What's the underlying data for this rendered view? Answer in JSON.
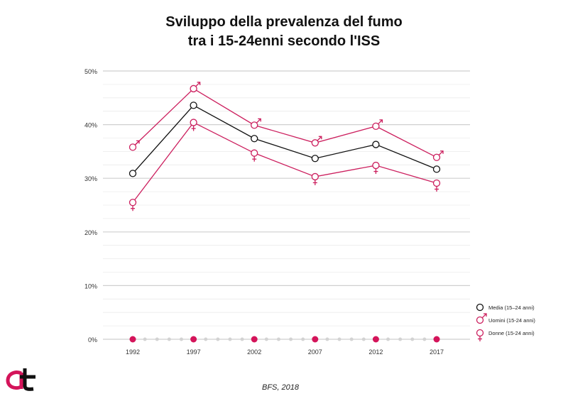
{
  "title_line1": "Sviluppo della prevalenza del fumo",
  "title_line2": "tra i 15-24enni secondo l'ISS",
  "source": "BFS, 2018",
  "colors": {
    "media": "#111111",
    "male": "#cc1f5e",
    "female": "#cc1f5e",
    "grid": "#cfcfcf",
    "dot_gray": "#d3d3d3",
    "dot_red": "#d4145a"
  },
  "chart_data": {
    "type": "line",
    "title": "Sviluppo della prevalenza del fumo tra i 15-24enni secondo l'ISS",
    "xlabel": "",
    "ylabel": "",
    "ylim": [
      0,
      50
    ],
    "y_ticks": [
      "0%",
      "10%",
      "20%",
      "30%",
      "40%",
      "50%"
    ],
    "y_tick_values": [
      0,
      10,
      20,
      30,
      40,
      50
    ],
    "x_ticks": [
      "1992",
      "1997",
      "2002",
      "2007",
      "2012",
      "2017"
    ],
    "x": [
      1992,
      1997,
      2002,
      2007,
      2012,
      2017
    ],
    "grid": true,
    "legend_position": "right",
    "series": [
      {
        "name": "Media (15–24 anni)",
        "marker": "circle",
        "values": [
          30.9,
          43.6,
          37.4,
          33.7,
          36.3,
          31.7
        ]
      },
      {
        "name": "Uomini (15-24 anni)",
        "marker": "male",
        "values": [
          35.8,
          46.7,
          39.9,
          36.6,
          39.7,
          33.9
        ]
      },
      {
        "name": "Donne (15-24 anni)",
        "marker": "female",
        "values": [
          25.5,
          40.4,
          34.7,
          30.3,
          32.4,
          29.1
        ]
      }
    ]
  }
}
